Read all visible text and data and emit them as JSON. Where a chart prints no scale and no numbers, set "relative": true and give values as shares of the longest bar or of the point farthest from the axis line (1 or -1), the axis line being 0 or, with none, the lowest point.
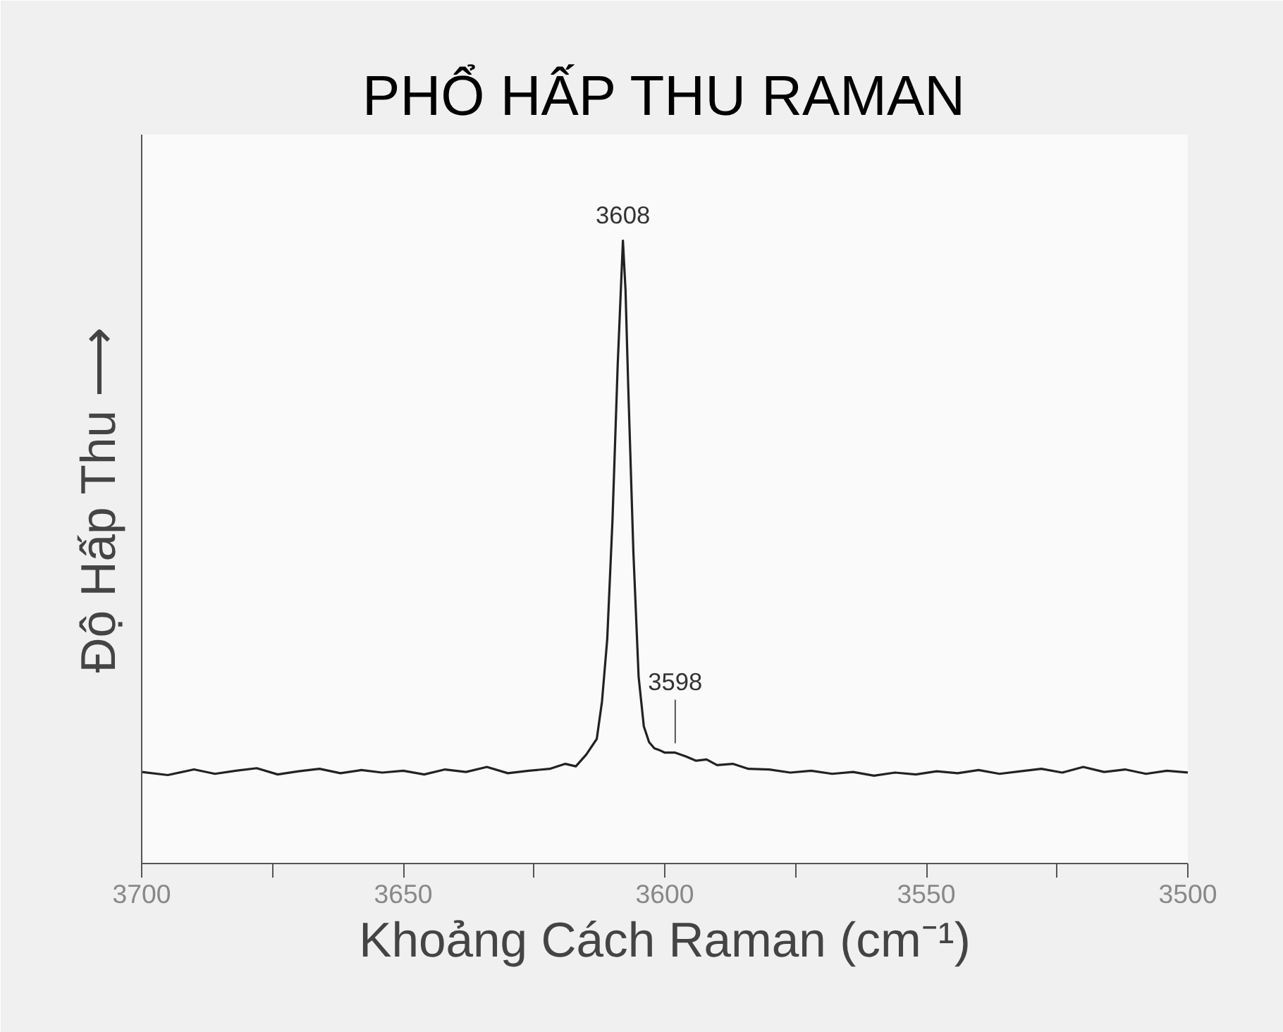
{
  "chart_data": {
    "type": "line",
    "title": "PHỔ HẤP THU RAMAN",
    "xlabel": "Khoảng Cách Raman (cm⁻¹)",
    "ylabel": "Độ Hấp Thu ⟶",
    "relative": true,
    "color": "#222222",
    "xlim": [
      3700,
      3500
    ],
    "xticks": [
      3700,
      {
        "value": 3675,
        "label": null
      },
      3650,
      {
        "value": 3625,
        "label": null
      },
      3600,
      {
        "value": 3575,
        "label": null
      },
      3550,
      {
        "value": 3525,
        "label": null
      },
      3500
    ],
    "x": [
      3700,
      3695,
      3690,
      3686,
      3682,
      3678,
      3674,
      3670,
      3666,
      3662,
      3658,
      3654,
      3650,
      3646,
      3642,
      3638,
      3634,
      3630,
      3626,
      3622,
      3619,
      3617,
      3615,
      3613,
      3612,
      3611,
      3610,
      3609,
      3608,
      3607.5,
      3607,
      3606,
      3605,
      3604,
      3603,
      3602,
      3601,
      3600,
      3598,
      3596,
      3594,
      3592,
      3590,
      3587,
      3584,
      3580,
      3576,
      3572,
      3568,
      3564,
      3560,
      3556,
      3552,
      3548,
      3544,
      3540,
      3536,
      3532,
      3528,
      3524,
      3520,
      3516,
      3512,
      3508,
      3504,
      3500
    ],
    "values": [
      0.147,
      0.142,
      0.151,
      0.144,
      0.149,
      0.153,
      0.143,
      0.148,
      0.152,
      0.145,
      0.15,
      0.146,
      0.149,
      0.143,
      0.151,
      0.147,
      0.155,
      0.145,
      0.149,
      0.152,
      0.16,
      0.156,
      0.175,
      0.2,
      0.26,
      0.36,
      0.55,
      0.8,
      1.0,
      0.92,
      0.77,
      0.5,
      0.3,
      0.22,
      0.195,
      0.185,
      0.182,
      0.178,
      0.178,
      0.172,
      0.165,
      0.167,
      0.158,
      0.16,
      0.152,
      0.151,
      0.146,
      0.149,
      0.144,
      0.147,
      0.141,
      0.146,
      0.143,
      0.148,
      0.145,
      0.15,
      0.144,
      0.148,
      0.152,
      0.146,
      0.155,
      0.147,
      0.151,
      0.144,
      0.149,
      0.146
    ],
    "annotations": [
      {
        "text": "3608",
        "x": 3608,
        "y": 1.0
      },
      {
        "text": "3598",
        "x": 3598,
        "y": 0.178
      }
    ]
  }
}
